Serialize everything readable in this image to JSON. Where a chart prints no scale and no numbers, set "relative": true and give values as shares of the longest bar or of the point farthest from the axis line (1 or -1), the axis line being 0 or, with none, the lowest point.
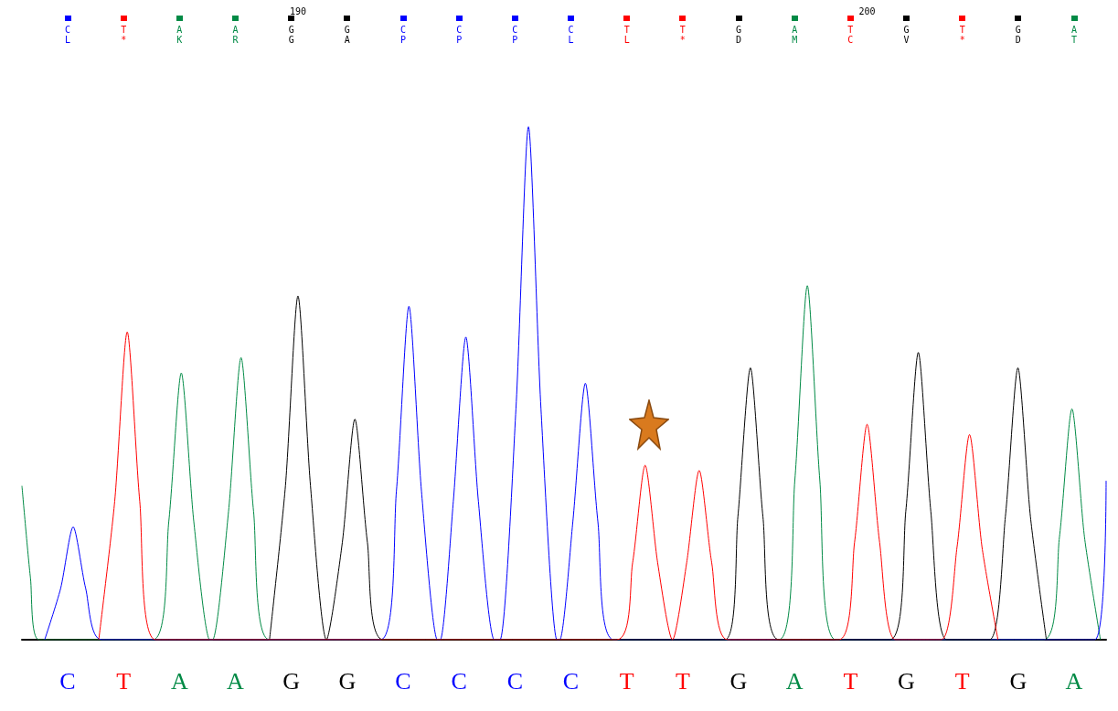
{
  "chart_data": {
    "type": "line",
    "relative": true,
    "marker": "none",
    "xlim": [
      185.15,
      204.2
    ],
    "xticks": [
      190,
      200
    ],
    "series": [
      {
        "color": "#008a45",
        "x": [
          185.15,
          185.3,
          185.45,
          187.45,
          187.73,
          187.95,
          188.17,
          188.45,
          188.5,
          188.78,
          189.0,
          189.22,
          189.5,
          198.45,
          198.73,
          198.95,
          199.17,
          199.45,
          203.1,
          203.38,
          203.6,
          203.82,
          204.1
        ],
        "values": [
          0.3,
          0.12,
          0,
          0,
          0.23,
          0.52,
          0.23,
          0,
          0,
          0.25,
          0.55,
          0.25,
          0,
          0,
          0.31,
          0.69,
          0.31,
          0,
          0,
          0.2,
          0.45,
          0.2,
          0
        ]
      },
      {
        "color": "#0000ff",
        "x": [
          185.55,
          185.83,
          186.05,
          186.27,
          186.55,
          191.45,
          191.73,
          191.95,
          192.17,
          192.45,
          192.5,
          192.73,
          192.95,
          193.17,
          193.45,
          193.55,
          193.83,
          194.05,
          194.27,
          194.55,
          194.6,
          194.83,
          195.05,
          195.27,
          195.55,
          204.0,
          204.2
        ],
        "values": [
          0,
          0.1,
          0.22,
          0.1,
          0,
          0,
          0.29,
          0.65,
          0.29,
          0,
          0,
          0.27,
          0.59,
          0.27,
          0,
          0,
          0.45,
          1.0,
          0.45,
          0,
          0,
          0.23,
          0.5,
          0.23,
          0,
          0,
          0.31
        ]
      },
      {
        "color": "#000000",
        "x": [
          189.5,
          189.78,
          190.0,
          190.22,
          190.5,
          190.78,
          191.0,
          191.22,
          191.5,
          197.5,
          197.73,
          197.95,
          198.17,
          198.45,
          200.4,
          200.68,
          200.9,
          201.12,
          201.4,
          202.15,
          202.43,
          202.65,
          202.87,
          203.15
        ],
        "values": [
          0,
          0.3,
          0.67,
          0.3,
          0,
          0.19,
          0.43,
          0.19,
          0,
          0,
          0.24,
          0.53,
          0.24,
          0,
          0,
          0.25,
          0.56,
          0.25,
          0,
          0,
          0.24,
          0.53,
          0.24,
          0
        ]
      },
      {
        "color": "#ff0000",
        "x": [
          186.5,
          186.78,
          187.0,
          187.22,
          187.5,
          195.6,
          195.88,
          196.1,
          196.32,
          196.58,
          196.83,
          197.05,
          197.27,
          197.55,
          199.5,
          199.78,
          200.0,
          200.22,
          200.5,
          201.3,
          201.58,
          201.8,
          202.02,
          202.3
        ],
        "values": [
          0,
          0.27,
          0.6,
          0.27,
          0,
          0,
          0.15,
          0.34,
          0.15,
          0,
          0.15,
          0.33,
          0.15,
          0,
          0,
          0.19,
          0.42,
          0.19,
          0,
          0,
          0.18,
          0.4,
          0.18,
          0
        ]
      }
    ],
    "annotations": [
      "C T A A G G C C C C T T G A T G T G A",
      "L * K R G A P P P L L * D M C V * D T",
      "C T A A G G C C C C T T G A T G T G A"
    ]
  }
}
